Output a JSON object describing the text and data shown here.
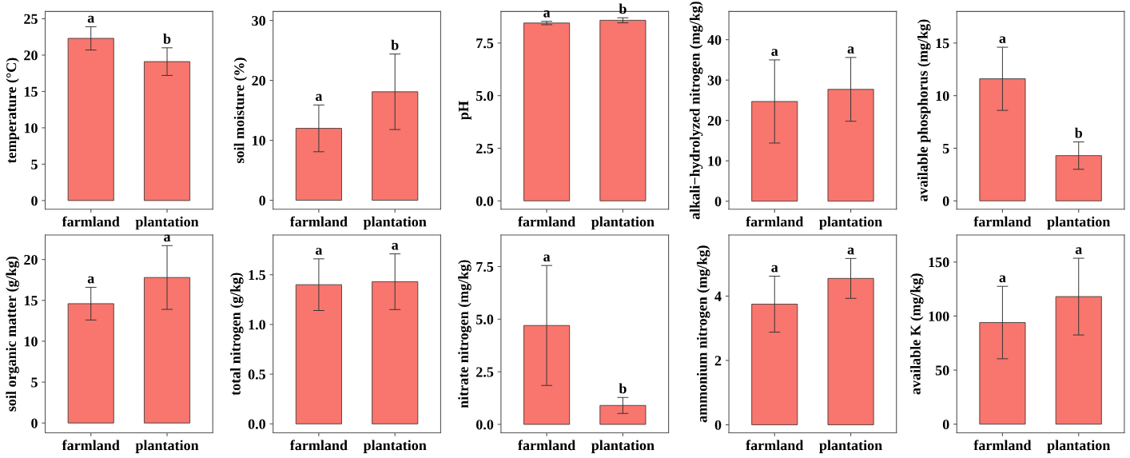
{
  "chart_data": [
    {
      "type": "bar",
      "ylabel": "temperature (°C)",
      "categories": [
        "farmland",
        "plantation"
      ],
      "values": [
        22.3,
        19.1
      ],
      "errors": [
        1.6,
        1.9
      ],
      "color": "#f8766d",
      "ylim": [
        -1.2,
        26
      ],
      "yticks": [
        0,
        5,
        10,
        15,
        20,
        25
      ],
      "grid": false,
      "annotations": [
        {
          "text": "a",
          "x": "farmland",
          "y": 23.9
        },
        {
          "text": "b",
          "x": "plantation",
          "y": 21.0
        }
      ]
    },
    {
      "type": "bar",
      "ylabel": "soil moisture (%)",
      "categories": [
        "farmland",
        "plantation"
      ],
      "values": [
        12.0,
        18.1
      ],
      "errors": [
        3.9,
        6.3
      ],
      "color": "#f8766d",
      "ylim": [
        -1.5,
        31.5
      ],
      "yticks": [
        0,
        10,
        20,
        30
      ],
      "grid": false,
      "annotations": [
        {
          "text": "a",
          "x": "farmland",
          "y": 15.9
        },
        {
          "text": "b",
          "x": "plantation",
          "y": 24.4
        }
      ]
    },
    {
      "type": "bar",
      "ylabel": "pH",
      "categories": [
        "farmland",
        "plantation"
      ],
      "values": [
        8.45,
        8.58
      ],
      "errors": [
        0.08,
        0.12
      ],
      "color": "#f8766d",
      "ylim": [
        -0.4,
        9.0
      ],
      "yticks": [
        {
          "value": 0,
          "label": "0.0"
        },
        {
          "value": 2.5,
          "label": "2.5"
        },
        {
          "value": 5,
          "label": "5.0"
        },
        {
          "value": 7.5,
          "label": "7.5"
        }
      ],
      "grid": false,
      "annotations": [
        {
          "text": "a",
          "x": "farmland",
          "y": 8.53
        },
        {
          "text": "b",
          "x": "plantation",
          "y": 8.7
        }
      ]
    },
    {
      "type": "bar",
      "ylabel": "alkali−hydrolyzed nitrogen (mg/kg)",
      "categories": [
        "farmland",
        "plantation"
      ],
      "values": [
        24.7,
        27.7
      ],
      "errors": [
        10.3,
        7.9
      ],
      "color": "#f8766d",
      "ylim": [
        -2,
        47
      ],
      "yticks": [
        0,
        10,
        20,
        30,
        40
      ],
      "grid": false,
      "annotations": [
        {
          "text": "a",
          "x": "farmland",
          "y": 35.0
        },
        {
          "text": "a",
          "x": "plantation",
          "y": 35.6
        }
      ]
    },
    {
      "type": "bar",
      "ylabel": "available phosphorus (mg/kg)",
      "categories": [
        "farmland",
        "plantation"
      ],
      "values": [
        11.6,
        4.3
      ],
      "errors": [
        3.0,
        1.3
      ],
      "color": "#f8766d",
      "ylim": [
        -0.8,
        18
      ],
      "yticks": [
        0,
        5,
        10,
        15
      ],
      "grid": false,
      "annotations": [
        {
          "text": "a",
          "x": "farmland",
          "y": 14.6
        },
        {
          "text": "b",
          "x": "plantation",
          "y": 5.6
        }
      ]
    },
    {
      "type": "bar",
      "ylabel": "soil organic matter (g/kg)",
      "categories": [
        "farmland",
        "plantation"
      ],
      "values": [
        14.6,
        17.8
      ],
      "errors": [
        2.0,
        3.9
      ],
      "color": "#f8766d",
      "ylim": [
        -1.2,
        23
      ],
      "yticks": [
        0,
        5,
        10,
        15,
        20
      ],
      "grid": false,
      "annotations": [
        {
          "text": "a",
          "x": "farmland",
          "y": 16.6
        },
        {
          "text": "a",
          "x": "plantation",
          "y": 21.7
        }
      ]
    },
    {
      "type": "bar",
      "ylabel": "total nitrogen (g/kg)",
      "categories": [
        "farmland",
        "plantation"
      ],
      "values": [
        1.4,
        1.43
      ],
      "errors": [
        0.26,
        0.28
      ],
      "color": "#f8766d",
      "ylim": [
        -0.09,
        1.9
      ],
      "yticks": [
        {
          "value": 0,
          "label": "0.0"
        },
        {
          "value": 0.5,
          "label": "0.5"
        },
        {
          "value": 1,
          "label": "1.0"
        },
        {
          "value": 1.5,
          "label": "1.5"
        }
      ],
      "grid": false,
      "annotations": [
        {
          "text": "a",
          "x": "farmland",
          "y": 1.66
        },
        {
          "text": "a",
          "x": "plantation",
          "y": 1.71
        }
      ]
    },
    {
      "type": "bar",
      "ylabel": "nitrate nitrogen (mg/kg)",
      "categories": [
        "farmland",
        "plantation"
      ],
      "values": [
        4.7,
        0.9
      ],
      "errors": [
        2.85,
        0.38
      ],
      "color": "#f8766d",
      "ylim": [
        -0.4,
        9
      ],
      "yticks": [
        {
          "value": 0,
          "label": "0.0"
        },
        {
          "value": 2.5,
          "label": "2.5"
        },
        {
          "value": 5,
          "label": "5.0"
        },
        {
          "value": 7.5,
          "label": "7.5"
        }
      ],
      "grid": false,
      "annotations": [
        {
          "text": "a",
          "x": "farmland",
          "y": 7.55
        },
        {
          "text": "b",
          "x": "plantation",
          "y": 1.28
        }
      ]
    },
    {
      "type": "bar",
      "ylabel": "ammonium nitrogen (mg/kg)",
      "categories": [
        "farmland",
        "plantation"
      ],
      "values": [
        3.75,
        4.55
      ],
      "errors": [
        0.87,
        0.62
      ],
      "color": "#f8766d",
      "ylim": [
        -0.25,
        5.9
      ],
      "yticks": [
        0,
        2,
        4
      ],
      "grid": false,
      "annotations": [
        {
          "text": "a",
          "x": "farmland",
          "y": 4.62
        },
        {
          "text": "a",
          "x": "plantation",
          "y": 5.17
        }
      ]
    },
    {
      "type": "bar",
      "ylabel": "available K (mg/kg)",
      "categories": [
        "farmland",
        "plantation"
      ],
      "values": [
        94,
        118
      ],
      "errors": [
        33.5,
        35.5
      ],
      "color": "#f8766d",
      "ylim": [
        -8,
        175
      ],
      "yticks": [
        0,
        50,
        100,
        150
      ],
      "grid": false,
      "annotations": [
        {
          "text": "a",
          "x": "farmland",
          "y": 127.5
        },
        {
          "text": "a",
          "x": "plantation",
          "y": 153.5
        }
      ]
    }
  ]
}
